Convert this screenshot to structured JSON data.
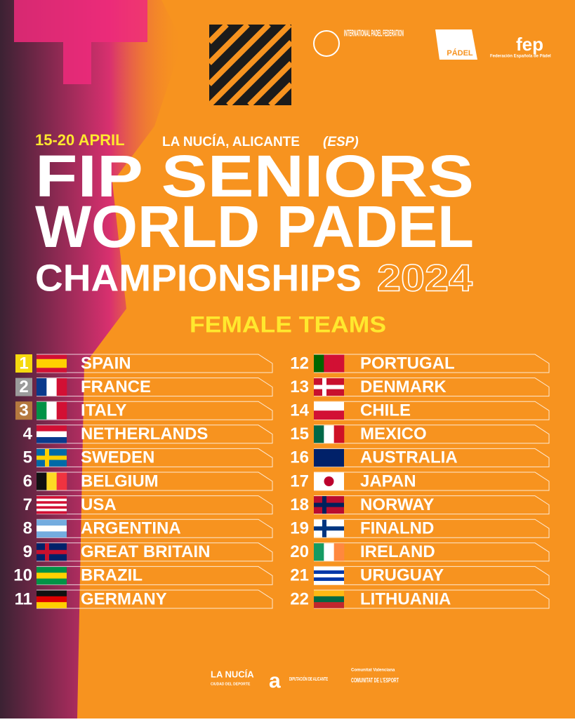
{
  "header": {
    "ipf": "INTERNATIONAL PADEL FEDERATION",
    "padel": "PÁDEL",
    "fep": "fep",
    "fep_sub": "Federación Española de Pádel"
  },
  "event": {
    "dates": "15-20 APRIL",
    "location": "LA NUCÍA, ALICANTE",
    "country": "(ESP)"
  },
  "title": {
    "line1": "FIP SENIORS",
    "line2": "WORLD PADEL",
    "line3": "CHAMPIONSHIPS",
    "year": "2024"
  },
  "subtitle": "FEMALE TEAMS",
  "rankings": [
    {
      "rank": 1,
      "country": "SPAIN"
    },
    {
      "rank": 2,
      "country": "FRANCE"
    },
    {
      "rank": 3,
      "country": "ITALY"
    },
    {
      "rank": 4,
      "country": "NETHERLANDS"
    },
    {
      "rank": 5,
      "country": "SWEDEN"
    },
    {
      "rank": 6,
      "country": "BELGIUM"
    },
    {
      "rank": 7,
      "country": "USA"
    },
    {
      "rank": 8,
      "country": "ARGENTINA"
    },
    {
      "rank": 9,
      "country": "GREAT BRITAIN"
    },
    {
      "rank": 10,
      "country": "BRAZIL"
    },
    {
      "rank": 11,
      "country": "GERMANY"
    },
    {
      "rank": 12,
      "country": "PORTUGAL"
    },
    {
      "rank": 13,
      "country": "DENMARK"
    },
    {
      "rank": 14,
      "country": "CHILE"
    },
    {
      "rank": 15,
      "country": "MEXICO"
    },
    {
      "rank": 16,
      "country": "AUSTRALIA"
    },
    {
      "rank": 17,
      "country": "JAPAN"
    },
    {
      "rank": 18,
      "country": "NORWAY"
    },
    {
      "rank": 19,
      "country": "FINALND"
    },
    {
      "rank": 20,
      "country": "IRELAND"
    },
    {
      "rank": 21,
      "country": "URUGUAY"
    },
    {
      "rank": 22,
      "country": "LITHUANIA"
    }
  ],
  "footer": {
    "nucia": "LA NUCÍA",
    "nucia_sub": "CIUDAD DEL DEPORTE",
    "diputacion": "DIPUTACIÓN DE ALICANTE",
    "cv": "Comunitat Valenciana",
    "esport": "COMUNITAT DE L'ESPORT"
  }
}
